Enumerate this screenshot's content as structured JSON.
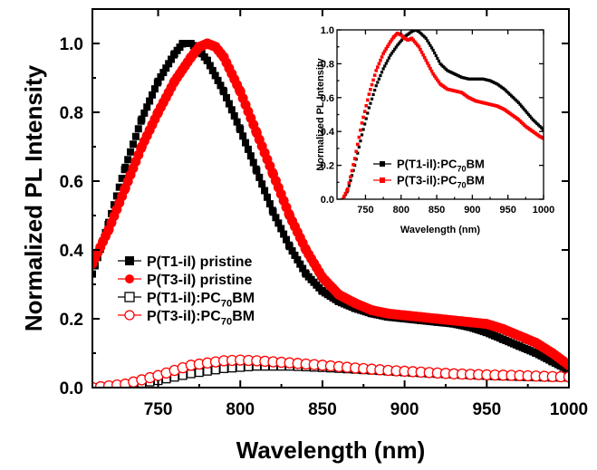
{
  "chart_data": [
    {
      "id": "main",
      "type": "scatter",
      "xlabel": "Wavelength (nm)",
      "ylabel": "Normalized PL Intensity",
      "xlim": [
        710,
        1000
      ],
      "ylim": [
        0.0,
        1.1
      ],
      "xticks": [
        750,
        800,
        850,
        900,
        950,
        1000
      ],
      "yticks": [
        0.0,
        0.2,
        0.4,
        0.6,
        0.8,
        1.0
      ],
      "ytick_labels": [
        "0.0",
        "0.2",
        "0.4",
        "0.6",
        "0.8",
        "1.0"
      ],
      "legend_position": "lower-left",
      "series": [
        {
          "name": "P(T1-il) pristine",
          "marker": "filled-square",
          "color": "#000000",
          "x": [
            710,
            720,
            730,
            740,
            750,
            760,
            765,
            770,
            775,
            780,
            790,
            800,
            810,
            820,
            830,
            840,
            850,
            860,
            870,
            880,
            890,
            900,
            910,
            920,
            930,
            940,
            950,
            960,
            970,
            980,
            990,
            1000
          ],
          "y": [
            0.33,
            0.48,
            0.64,
            0.78,
            0.89,
            0.97,
            1.0,
            1.0,
            0.98,
            0.95,
            0.86,
            0.75,
            0.63,
            0.51,
            0.41,
            0.33,
            0.28,
            0.25,
            0.23,
            0.215,
            0.205,
            0.2,
            0.195,
            0.19,
            0.185,
            0.175,
            0.16,
            0.14,
            0.12,
            0.1,
            0.075,
            0.05
          ]
        },
        {
          "name": "P(T3-il) pristine",
          "marker": "filled-circle",
          "color": "#ff0000",
          "x": [
            710,
            720,
            730,
            740,
            750,
            760,
            770,
            775,
            780,
            785,
            790,
            800,
            810,
            820,
            830,
            840,
            850,
            860,
            870,
            880,
            890,
            900,
            910,
            920,
            930,
            940,
            950,
            960,
            970,
            980,
            990,
            1000
          ],
          "y": [
            0.36,
            0.46,
            0.58,
            0.7,
            0.8,
            0.89,
            0.96,
            0.99,
            1.0,
            0.99,
            0.96,
            0.86,
            0.74,
            0.62,
            0.5,
            0.4,
            0.32,
            0.27,
            0.245,
            0.225,
            0.215,
            0.21,
            0.205,
            0.2,
            0.195,
            0.19,
            0.185,
            0.17,
            0.15,
            0.13,
            0.1,
            0.065
          ]
        },
        {
          "name": "P(T1-il):PC70BM",
          "marker": "open-square",
          "color": "#000000",
          "x": [
            710,
            730,
            750,
            770,
            790,
            810,
            830,
            850,
            870,
            890,
            910,
            930,
            950,
            970,
            990,
            1000
          ],
          "y": [
            0.0,
            0.005,
            0.02,
            0.04,
            0.055,
            0.062,
            0.062,
            0.058,
            0.053,
            0.048,
            0.043,
            0.039,
            0.035,
            0.032,
            0.03,
            0.03
          ]
        },
        {
          "name": "P(T3-il):PC70BM",
          "marker": "open-circle",
          "color": "#ff0000",
          "x": [
            710,
            730,
            750,
            770,
            790,
            800,
            810,
            830,
            850,
            870,
            890,
            910,
            930,
            950,
            970,
            990,
            1000
          ],
          "y": [
            0.0,
            0.01,
            0.035,
            0.065,
            0.078,
            0.08,
            0.078,
            0.072,
            0.065,
            0.057,
            0.05,
            0.045,
            0.04,
            0.037,
            0.035,
            0.032,
            0.031
          ]
        }
      ]
    },
    {
      "id": "inset",
      "type": "scatter",
      "xlabel": "Wavelength (nm)",
      "ylabel": "Normalized PL Intensity",
      "xlim": [
        710,
        1000
      ],
      "ylim": [
        0.0,
        1.0
      ],
      "xticks": [
        750,
        800,
        850,
        900,
        950,
        1000
      ],
      "yticks": [
        0.0,
        0.2,
        0.4,
        0.6,
        0.8,
        1.0
      ],
      "ytick_labels": [
        "0.0",
        "0.2",
        "0.4",
        "0.6",
        "0.8",
        "1.0"
      ],
      "legend_position": "lower-center",
      "series": [
        {
          "name": "P(T1-il):PC70BM",
          "marker": "filled-square",
          "color": "#000000",
          "x": [
            718,
            725,
            735,
            745,
            755,
            765,
            775,
            785,
            795,
            805,
            815,
            820,
            825,
            835,
            845,
            855,
            865,
            875,
            885,
            895,
            905,
            915,
            925,
            935,
            945,
            955,
            965,
            975,
            985,
            995,
            1000
          ],
          "y": [
            0.0,
            0.05,
            0.2,
            0.38,
            0.54,
            0.67,
            0.77,
            0.85,
            0.91,
            0.96,
            0.99,
            1.0,
            0.99,
            0.95,
            0.88,
            0.8,
            0.76,
            0.74,
            0.72,
            0.71,
            0.71,
            0.71,
            0.7,
            0.68,
            0.65,
            0.61,
            0.57,
            0.52,
            0.47,
            0.43,
            0.41
          ]
        },
        {
          "name": "P(T3-il):PC70BM",
          "marker": "filled-square",
          "color": "#ff0000",
          "x": [
            718,
            725,
            735,
            745,
            755,
            765,
            775,
            785,
            790,
            795,
            800,
            805,
            810,
            815,
            825,
            835,
            845,
            855,
            865,
            875,
            885,
            895,
            905,
            915,
            925,
            935,
            945,
            955,
            965,
            975,
            985,
            995,
            1000
          ],
          "y": [
            0.0,
            0.06,
            0.24,
            0.45,
            0.62,
            0.76,
            0.86,
            0.93,
            0.96,
            0.98,
            0.97,
            0.95,
            0.94,
            0.95,
            0.9,
            0.82,
            0.74,
            0.68,
            0.65,
            0.64,
            0.63,
            0.6,
            0.58,
            0.57,
            0.56,
            0.55,
            0.53,
            0.5,
            0.47,
            0.43,
            0.4,
            0.37,
            0.36
          ]
        }
      ]
    }
  ],
  "legend_main": [
    {
      "prefix": "P(T1-il) pristine",
      "sub": "",
      "suffix": ""
    },
    {
      "prefix": "P(T3-il) pristine",
      "sub": "",
      "suffix": ""
    },
    {
      "prefix": "P(T1-il):PC",
      "sub": "70",
      "suffix": "BM"
    },
    {
      "prefix": "P(T3-il):PC",
      "sub": "70",
      "suffix": "BM"
    }
  ],
  "legend_inset": [
    {
      "prefix": "P(T1-il):PC",
      "sub": "70",
      "suffix": "BM"
    },
    {
      "prefix": "P(T3-il):PC",
      "sub": "70",
      "suffix": "BM"
    }
  ]
}
